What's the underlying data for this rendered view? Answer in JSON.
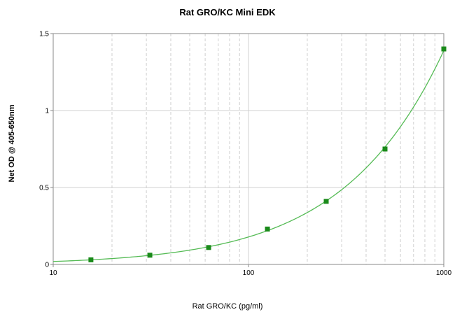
{
  "chart_data": {
    "type": "scatter",
    "title": "Rat GRO/KC Mini EDK",
    "xlabel": "Rat GRO/KC (pg/ml)",
    "ylabel": "Net OD @ 405-650nm",
    "xscale": "log",
    "xlim": [
      10,
      1000
    ],
    "ylim": [
      0,
      1.5
    ],
    "x_ticks": [
      "10",
      "100",
      "1000"
    ],
    "y_ticks": [
      "0",
      "0.5",
      "1",
      "1.5"
    ],
    "grid": true,
    "series": [
      {
        "points": [
          {
            "x": 15.6,
            "y": 0.03
          },
          {
            "x": 31.25,
            "y": 0.06
          },
          {
            "x": 62.5,
            "y": 0.11
          },
          {
            "x": 125,
            "y": 0.23
          },
          {
            "x": 250,
            "y": 0.41
          },
          {
            "x": 500,
            "y": 0.75
          },
          {
            "x": 1000,
            "y": 1.4
          }
        ],
        "fit": "curve"
      }
    ],
    "colors": {
      "series": "#1a8a1a",
      "fit_line": "#55bb55",
      "grid": "#d0d0d0"
    }
  }
}
